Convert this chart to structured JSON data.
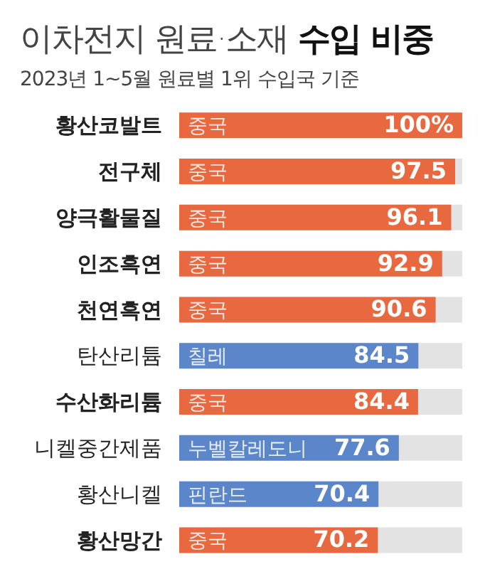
{
  "chart_data": {
    "type": "bar",
    "orientation": "horizontal",
    "title": "이차전지 원료·소재 수입 비중",
    "subtitle": "2023년 1~5월 원료별 1위 수입국 기준",
    "categories": [
      "황산코발트",
      "전구체",
      "양극활물질",
      "인조흑연",
      "천연흑연",
      "탄산리튬",
      "수산화리튬",
      "니켈중간제품",
      "황산니켈",
      "황산망간"
    ],
    "xlim": [
      0,
      100
    ],
    "tick_labels": "y",
    "series": [
      {
        "name": "중국",
        "color": "#e8693f",
        "values": [
          100,
          97.5,
          96.1,
          92.9,
          90.6,
          null,
          84.4,
          null,
          null,
          70.2
        ],
        "value_labels": [
          "100%",
          "97.5",
          "96.1",
          "92.9",
          "90.6",
          null,
          "84.4",
          null,
          null,
          "70.2"
        ]
      },
      {
        "name": "칠레",
        "color": "#5b86c9",
        "values": [
          null,
          null,
          null,
          null,
          null,
          84.5,
          null,
          null,
          null,
          null
        ],
        "value_labels": [
          null,
          null,
          null,
          null,
          null,
          "84.5",
          null,
          null,
          null,
          null
        ]
      },
      {
        "name": "누벨칼레도니",
        "color": "#5b86c9",
        "values": [
          null,
          null,
          null,
          null,
          null,
          null,
          null,
          77.6,
          null,
          null
        ],
        "value_labels": [
          null,
          null,
          null,
          null,
          null,
          null,
          null,
          "77.6",
          null,
          null
        ]
      },
      {
        "name": "핀란드",
        "color": "#5b86c9",
        "values": [
          null,
          null,
          null,
          null,
          null,
          null,
          null,
          null,
          70.4,
          null
        ],
        "value_labels": [
          null,
          null,
          null,
          null,
          null,
          null,
          null,
          null,
          "70.4",
          null
        ]
      }
    ]
  }
}
